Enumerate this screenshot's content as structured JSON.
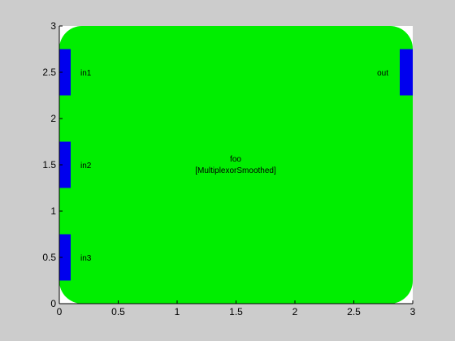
{
  "figure": {
    "background_color": "#cccccc",
    "axes_background_color": "#ffffff",
    "tick_color": "#000000"
  },
  "axes": {
    "xlim": [
      0,
      3
    ],
    "ylim": [
      0,
      3
    ],
    "x_ticks": [
      "0",
      "0.5",
      "1",
      "1.5",
      "2",
      "2.5",
      "3"
    ],
    "y_ticks": [
      "0",
      "0.5",
      "1",
      "1.5",
      "2",
      "2.5",
      "3"
    ],
    "grid": false
  },
  "block": {
    "name": "foo",
    "type": "[MultiplexorSmoothed]",
    "fill_color": "#00ee00",
    "extent": {
      "x": [
        0,
        3
      ],
      "y": [
        0,
        3
      ]
    }
  },
  "ports": {
    "color": "#0000ee",
    "inputs": [
      {
        "label": "in1",
        "y_range": [
          2.25,
          2.75
        ]
      },
      {
        "label": "in2",
        "y_range": [
          1.25,
          1.75
        ]
      },
      {
        "label": "in3",
        "y_range": [
          0.25,
          0.75
        ]
      }
    ],
    "outputs": [
      {
        "label": "out",
        "y_range": [
          2.25,
          2.75
        ]
      }
    ]
  }
}
